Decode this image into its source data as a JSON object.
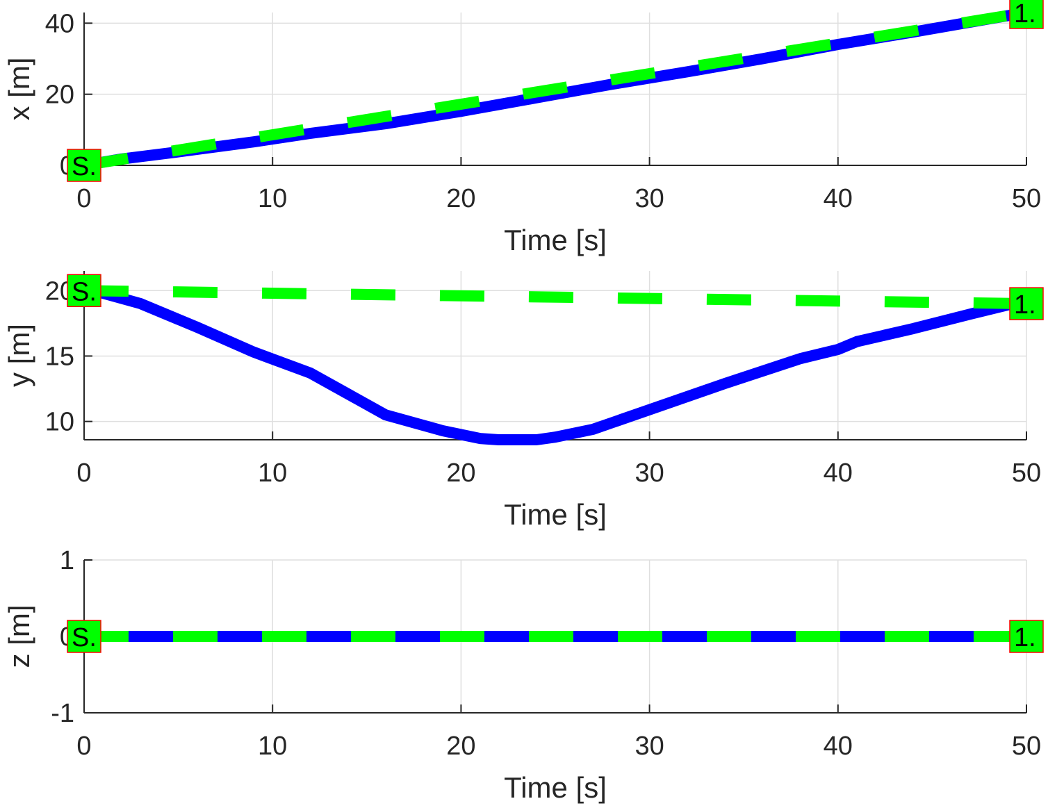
{
  "chart_data": [
    {
      "type": "line",
      "xlabel": "Time [s]",
      "ylabel": "x [m]",
      "xlim": [
        0,
        50
      ],
      "ylim": [
        0,
        43
      ],
      "xticks": [
        0,
        10,
        20,
        30,
        40,
        50
      ],
      "yticks": [
        0,
        20,
        40
      ],
      "grid": true,
      "series": [
        {
          "style": "solid",
          "color": "#0000ff",
          "x": [
            0,
            2,
            5,
            9,
            12,
            16,
            20,
            24,
            28,
            32,
            36,
            40,
            44,
            48,
            50
          ],
          "y": [
            0,
            1.8,
            3.8,
            6.6,
            9,
            11.7,
            15.2,
            19,
            22.8,
            26.3,
            30,
            34,
            37.5,
            41.2,
            43
          ]
        },
        {
          "style": "dashed",
          "color": "#00ff00",
          "x": [
            0,
            10,
            20,
            30,
            40,
            50
          ],
          "y": [
            0,
            8.6,
            17.2,
            25.8,
            34.4,
            43
          ]
        }
      ],
      "markers": [
        {
          "x": 0,
          "y": 0,
          "label": "S."
        },
        {
          "x": 50,
          "y": 43,
          "label": "1."
        }
      ]
    },
    {
      "type": "line",
      "xlabel": "Time [s]",
      "ylabel": "y [m]",
      "xlim": [
        0,
        50
      ],
      "ylim": [
        8.6,
        21.5
      ],
      "xticks": [
        0,
        10,
        20,
        30,
        40,
        50
      ],
      "yticks": [
        10,
        15,
        20
      ],
      "grid": true,
      "series": [
        {
          "style": "solid",
          "color": "#0000ff",
          "x": [
            0,
            1,
            3,
            6,
            9,
            12,
            16,
            19,
            21,
            22,
            23,
            24,
            25,
            27,
            28,
            30,
            34,
            38,
            40,
            41,
            44,
            47,
            49,
            50
          ],
          "y": [
            20,
            19.8,
            19,
            17.2,
            15.3,
            13.7,
            10.5,
            9.3,
            8.7,
            8.6,
            8.6,
            8.6,
            8.8,
            9.4,
            9.9,
            10.9,
            12.9,
            14.8,
            15.5,
            16.1,
            17.1,
            18.2,
            18.9,
            19.1
          ]
        },
        {
          "style": "dashed",
          "color": "#00ff00",
          "x": [
            0,
            50
          ],
          "y": [
            20,
            19
          ]
        }
      ],
      "markers": [
        {
          "x": 0,
          "y": 20,
          "label": "S."
        },
        {
          "x": 50,
          "y": 19,
          "label": "1."
        }
      ]
    },
    {
      "type": "line",
      "xlabel": "Time [s]",
      "ylabel": "z [m]",
      "xlim": [
        0,
        50
      ],
      "ylim": [
        -1,
        1
      ],
      "xticks": [
        0,
        10,
        20,
        30,
        40,
        50
      ],
      "yticks": [
        -1,
        0,
        1
      ],
      "grid": true,
      "series": [
        {
          "style": "solid",
          "color": "#0000ff",
          "x": [
            0,
            50
          ],
          "y": [
            0,
            0
          ]
        },
        {
          "style": "dashed",
          "color": "#00ff00",
          "x": [
            0,
            50
          ],
          "y": [
            0,
            0
          ]
        }
      ],
      "markers": [
        {
          "x": 0,
          "y": 0,
          "label": "S."
        },
        {
          "x": 50,
          "y": 0,
          "label": "1."
        }
      ]
    }
  ]
}
